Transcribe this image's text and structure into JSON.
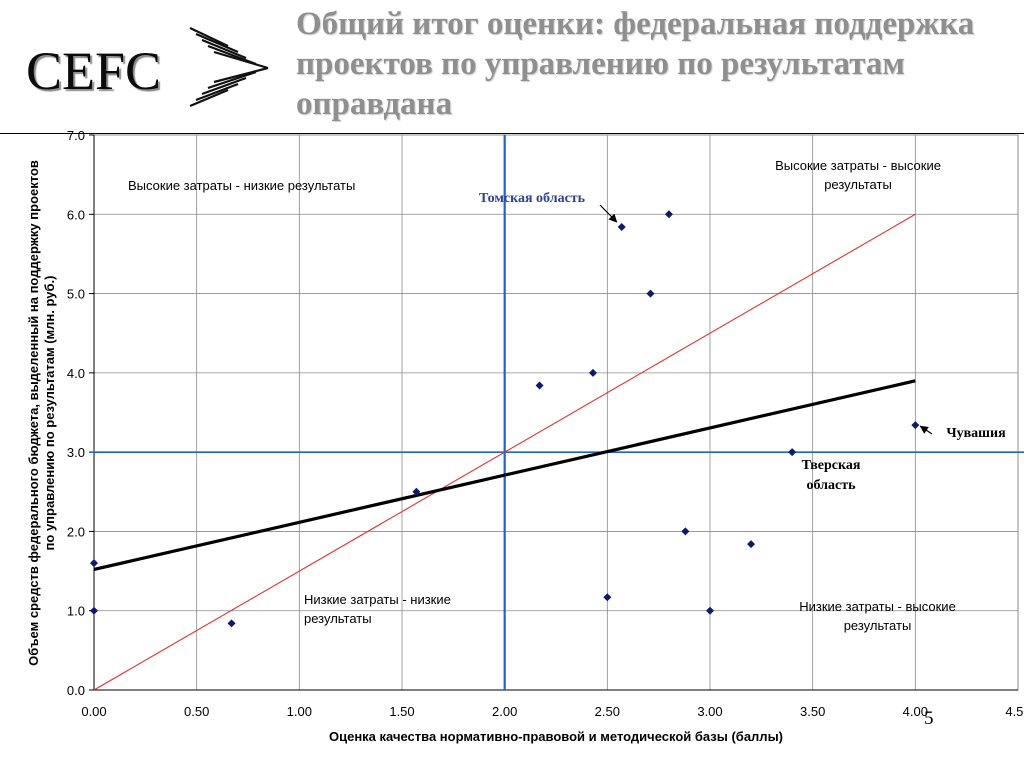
{
  "header": {
    "logo_text": "CEFC",
    "title": "Общий итог оценки: федеральная поддержка проектов по управлению по результатам оправдана"
  },
  "slide_number": "5",
  "colors": {
    "points": "#0d1a6e",
    "trend": "#000000",
    "diagonal": "#e53030",
    "quadrant_lines": "#1b64c8",
    "grid": "#8c8c8c",
    "annotation_tomsk": "#2c3f9b"
  },
  "chart_data": {
    "type": "scatter",
    "xlabel": "Оценка качества нормативно-правовой и методической базы (баллы)",
    "ylabel": "Объем средств федерального бюджета, выделенный на поддержку проектов по управлению по результатам (млн. руб.)",
    "xlim": [
      0,
      4.5
    ],
    "ylim": [
      0,
      7
    ],
    "x_ticks": [
      "0.00",
      "0.50",
      "1.00",
      "1.50",
      "2.00",
      "2.50",
      "3.00",
      "3.50",
      "4.00",
      "4.50"
    ],
    "y_ticks": [
      "0.0",
      "1.0",
      "2.0",
      "3.0",
      "4.0",
      "5.0",
      "6.0",
      "7.0"
    ],
    "grid": true,
    "points": [
      {
        "x": 0.0,
        "y": 1.6
      },
      {
        "x": 0.0,
        "y": 1.0
      },
      {
        "x": 0.67,
        "y": 0.84
      },
      {
        "x": 1.57,
        "y": 2.5
      },
      {
        "x": 2.17,
        "y": 3.84
      },
      {
        "x": 2.43,
        "y": 4.0
      },
      {
        "x": 2.57,
        "y": 5.84
      },
      {
        "x": 2.8,
        "y": 6.0
      },
      {
        "x": 2.71,
        "y": 5.0
      },
      {
        "x": 2.5,
        "y": 1.17
      },
      {
        "x": 2.88,
        "y": 2.0
      },
      {
        "x": 3.0,
        "y": 1.0
      },
      {
        "x": 3.2,
        "y": 1.84
      },
      {
        "x": 3.4,
        "y": 3.0
      },
      {
        "x": 4.0,
        "y": 3.34
      }
    ],
    "trend_line": {
      "x": [
        0.0,
        4.0
      ],
      "y": [
        1.52,
        3.9
      ]
    },
    "diagonal_line": {
      "x": [
        0.0,
        4.0
      ],
      "y": [
        0.0,
        6.0
      ]
    },
    "quadrant_lines": {
      "x": 2.0,
      "y": 3.0
    },
    "quadrant_labels": {
      "top_left": "Высокие затраты - низкие результаты",
      "top_right": "Высокие затраты - высокие результаты",
      "bottom_left": "Низкие затраты - низкие результаты",
      "bottom_right": "Низкие затраты - высокие результаты"
    },
    "annotations": [
      {
        "id": "tomsk",
        "text": "Томская область",
        "point": {
          "x": 2.57,
          "y": 5.84
        }
      },
      {
        "id": "chuvashia",
        "text": "Чувашия",
        "point": {
          "x": 4.0,
          "y": 3.34
        }
      },
      {
        "id": "tver",
        "text": "Тверская область",
        "point": {
          "x": 3.4,
          "y": 3.0
        }
      }
    ]
  }
}
